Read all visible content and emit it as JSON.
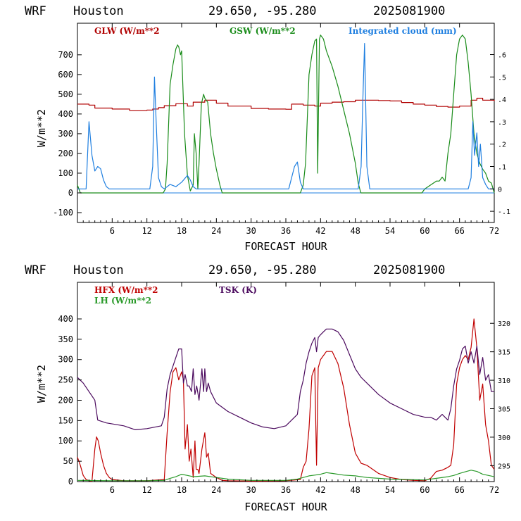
{
  "header": {
    "model": "WRF",
    "city": "Houston",
    "coords": "29.650, -95.280",
    "init": "2025081900"
  },
  "colors": {
    "glw": "#b00000",
    "gsw": "#1a8c1a",
    "cloud": "#1f7fe0",
    "hfx": "#c00000",
    "lh": "#2a9a2a",
    "tsk": "#4b0a5e"
  },
  "chart_data": [
    {
      "type": "line",
      "xlabel": "FORECAST HOUR",
      "ylabel": "W/m**2",
      "xlim": [
        0,
        72
      ],
      "ylim": [
        -150,
        860
      ],
      "y2lim": [
        -0.15,
        0.74
      ],
      "xticks": [
        6,
        12,
        18,
        24,
        30,
        36,
        42,
        48,
        54,
        60,
        66,
        72
      ],
      "yticks": [
        -100,
        0,
        100,
        200,
        300,
        400,
        500,
        600,
        700
      ],
      "yticklabels": [
        "-100",
        "0",
        "100",
        "200",
        "300",
        "400",
        "500",
        "600",
        "700"
      ],
      "y2ticks": [
        -0.1,
        0,
        0.1,
        0.2,
        0.3,
        0.4,
        0.5,
        0.6
      ],
      "y2ticklabels": [
        "-.1",
        "0",
        ".1",
        ".2",
        ".3",
        ".4",
        ".5",
        ".6"
      ],
      "series": [
        {
          "name": "GLW (W/m**2",
          "axis": "left",
          "color": "glw",
          "step": true,
          "x": [
            0,
            2,
            3,
            6,
            9,
            12,
            13,
            14,
            15,
            17,
            19,
            20,
            22,
            24,
            26,
            30,
            33,
            36,
            37,
            39,
            41,
            42,
            44,
            46,
            48,
            50,
            52,
            54,
            56,
            58,
            60,
            62,
            64,
            66,
            68,
            69,
            70,
            72
          ],
          "y": [
            450,
            445,
            430,
            425,
            418,
            420,
            425,
            432,
            442,
            452,
            440,
            460,
            470,
            455,
            440,
            428,
            425,
            424,
            450,
            445,
            440,
            455,
            460,
            462,
            470,
            470,
            468,
            466,
            458,
            450,
            445,
            438,
            435,
            440,
            470,
            480,
            470,
            465
          ]
        },
        {
          "name": "GSW (W/m**2",
          "axis": "left",
          "color": "gsw",
          "x": [
            0,
            0.5,
            1,
            14.8,
            15.2,
            15.5,
            16,
            16.5,
            17,
            17.3,
            17.5,
            17.8,
            18,
            18.5,
            19,
            19.5,
            20,
            20.2,
            20.5,
            20.8,
            21,
            21.4,
            21.8,
            22,
            22.5,
            23,
            23.5,
            24,
            24.6,
            25,
            38.5,
            39,
            39.4,
            40,
            40.5,
            41,
            41.3,
            41.5,
            41.8,
            42,
            42.5,
            43,
            44,
            45,
            46,
            47,
            48,
            48.5,
            48.9,
            49,
            59.5,
            60,
            61,
            62,
            62.5,
            63,
            63.5,
            64,
            64.5,
            65,
            65.5,
            66,
            66.5,
            67,
            67.5,
            68,
            68.5,
            69,
            69.5,
            70,
            70.5,
            71,
            71.5,
            72
          ],
          "y": [
            40,
            0,
            0,
            0,
            20,
            150,
            550,
            650,
            730,
            750,
            740,
            700,
            720,
            300,
            90,
            10,
            40,
            300,
            200,
            20,
            150,
            450,
            500,
            480,
            460,
            300,
            200,
            120,
            40,
            0,
            0,
            40,
            150,
            600,
            700,
            770,
            780,
            100,
            780,
            800,
            780,
            720,
            640,
            540,
            420,
            300,
            150,
            50,
            5,
            0,
            0,
            20,
            40,
            60,
            60,
            80,
            60,
            200,
            300,
            500,
            700,
            780,
            800,
            780,
            660,
            500,
            300,
            200,
            150,
            120,
            100,
            60,
            50,
            0
          ]
        },
        {
          "name": "Integrated cloud (mm)",
          "axis": "right",
          "color": "cloud",
          "x": [
            0,
            1.5,
            2,
            2.5,
            3,
            3.5,
            4,
            4.5,
            5,
            5.5,
            6,
            12.5,
            13,
            13.3,
            13.6,
            14,
            14.5,
            15,
            16,
            17,
            18,
            19,
            19.5,
            20,
            20.5,
            21,
            36.5,
            37,
            37.5,
            38,
            38.5,
            39,
            48.5,
            49,
            49.3,
            49.6,
            50,
            50.5,
            67.5,
            68,
            68.3,
            68.6,
            69,
            69.3,
            69.6,
            70,
            70.5,
            71,
            72
          ],
          "y": [
            0,
            0,
            0.3,
            0.15,
            0.08,
            0.1,
            0.09,
            0.04,
            0.01,
            0,
            0,
            0,
            0.1,
            0.5,
            0.3,
            0.05,
            0.01,
            0,
            0.02,
            0.01,
            0.03,
            0.06,
            0.04,
            0.01,
            0,
            0,
            0,
            0.05,
            0.1,
            0.12,
            0.03,
            0,
            0,
            0.1,
            0.4,
            0.65,
            0.1,
            0,
            0,
            0.05,
            0.3,
            0.15,
            0.25,
            0.1,
            0.2,
            0.05,
            0.02,
            0,
            0
          ]
        }
      ]
    },
    {
      "type": "line",
      "xlabel": "FORECAST HOUR",
      "ylabel": "W/m**2",
      "xlim": [
        0,
        72
      ],
      "ylim": [
        0,
        490
      ],
      "y2lim": [
        292.2,
        327.2
      ],
      "xticks": [
        6,
        12,
        18,
        24,
        30,
        36,
        42,
        48,
        54,
        60,
        66,
        72
      ],
      "yticks": [
        0,
        50,
        100,
        150,
        200,
        250,
        300,
        350,
        400
      ],
      "yticklabels": [
        "0",
        "50",
        "100",
        "150",
        "200",
        "250",
        "300",
        "350",
        "400"
      ],
      "y2ticks": [
        295,
        300,
        305,
        310,
        315,
        320
      ],
      "y2ticklabels": [
        "295",
        "300",
        "305",
        "310",
        "315",
        "320"
      ],
      "series": [
        {
          "name": "HFX (W/m**2",
          "axis": "left",
          "color": "hfx",
          "x": [
            0,
            0.5,
            1,
            1.5,
            2,
            2.5,
            3,
            3.3,
            3.6,
            4,
            4.5,
            5,
            5.5,
            6,
            8,
            12,
            15,
            15.5,
            16,
            16.5,
            17,
            17.5,
            18,
            18.3,
            18.6,
            19,
            19.3,
            19.6,
            20,
            20.3,
            20.5,
            20.8,
            21,
            21.5,
            22,
            22.3,
            22.6,
            23,
            24,
            25,
            26,
            30,
            36,
            38.5,
            39,
            39.5,
            40,
            40.5,
            41,
            41.3,
            41.6,
            42,
            42.5,
            43,
            44,
            45,
            46,
            47,
            48,
            49,
            50,
            52,
            54,
            56,
            58,
            60,
            61,
            62,
            63,
            64,
            64.5,
            65,
            65.5,
            66,
            66.5,
            67,
            67.5,
            68,
            68.5,
            69,
            69.5,
            70,
            70.5,
            71,
            71.5,
            72
          ],
          "y": [
            60,
            40,
            15,
            5,
            2,
            1,
            80,
            110,
            100,
            70,
            40,
            20,
            10,
            5,
            2,
            2,
            5,
            120,
            220,
            270,
            280,
            250,
            270,
            250,
            80,
            140,
            50,
            80,
            10,
            100,
            30,
            30,
            20,
            80,
            120,
            60,
            70,
            20,
            10,
            3,
            2,
            1,
            2,
            5,
            35,
            50,
            130,
            260,
            280,
            40,
            280,
            300,
            310,
            320,
            320,
            290,
            230,
            140,
            70,
            45,
            40,
            20,
            10,
            5,
            3,
            2,
            8,
            25,
            28,
            35,
            40,
            90,
            240,
            280,
            300,
            310,
            300,
            330,
            400,
            330,
            200,
            240,
            140,
            100,
            40,
            30
          ]
        },
        {
          "name": "LH  (W/m**2",
          "axis": "left",
          "color": "lh",
          "x": [
            0,
            6,
            12,
            15,
            16,
            17,
            18,
            19,
            20,
            22,
            24,
            26,
            30,
            36,
            38,
            39,
            40,
            41,
            42,
            43,
            44,
            46,
            48,
            50,
            52,
            54,
            60,
            62,
            64,
            65,
            66,
            67,
            68,
            69,
            70,
            72
          ],
          "y": [
            3,
            2,
            2,
            3,
            8,
            12,
            18,
            15,
            12,
            14,
            10,
            6,
            3,
            3,
            6,
            10,
            14,
            16,
            18,
            22,
            20,
            16,
            14,
            10,
            8,
            6,
            4,
            8,
            12,
            15,
            20,
            24,
            28,
            25,
            18,
            12
          ]
        },
        {
          "name": "TSK (K)",
          "axis": "right",
          "color": "tsk",
          "x": [
            0,
            0.5,
            1,
            2,
            3,
            3.5,
            5,
            8,
            10,
            12,
            14.5,
            15,
            15.5,
            16,
            16.5,
            17,
            17.5,
            18,
            18.3,
            18.6,
            19,
            19.3,
            19.7,
            20,
            20.3,
            20.6,
            21,
            21.5,
            21.8,
            22,
            22.3,
            22.6,
            23,
            24,
            26,
            28,
            30,
            32,
            34,
            36,
            38,
            38.5,
            39,
            39.5,
            40,
            40.5,
            41,
            41.3,
            41.6,
            42,
            42.5,
            43,
            44,
            45,
            46,
            47,
            48,
            49,
            50,
            52,
            54,
            56,
            58,
            60,
            61,
            62,
            63,
            64,
            64.5,
            65,
            65.5,
            66,
            66.5,
            67,
            67.5,
            68,
            68.5,
            69,
            69.5,
            70,
            70.5,
            71,
            71.5,
            72
          ],
          "y": [
            310.5,
            310,
            309.5,
            308,
            306.5,
            303,
            302.5,
            302,
            301.3,
            301.5,
            302,
            303.5,
            308.5,
            311,
            312.5,
            314,
            315.5,
            315.5,
            309.5,
            311,
            309,
            309,
            308,
            312,
            307.5,
            309,
            306.5,
            312,
            308,
            312,
            308,
            309.5,
            308,
            306,
            304.5,
            303.5,
            302.5,
            301.8,
            301.5,
            302,
            304,
            308,
            310,
            313,
            315,
            316.5,
            317.5,
            315,
            317.5,
            318,
            318.5,
            319,
            319,
            318.5,
            317,
            314.5,
            312,
            310.5,
            309.5,
            307.5,
            306,
            305,
            304,
            303.5,
            303.5,
            303,
            304,
            303,
            305,
            309,
            312,
            313.5,
            315.5,
            316,
            313,
            315,
            313,
            316,
            311,
            314,
            310,
            311,
            308,
            308
          ]
        }
      ]
    }
  ]
}
